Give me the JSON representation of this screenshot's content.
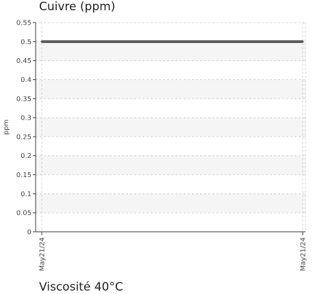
{
  "chart_data": {
    "type": "line",
    "title": "Cuivre (ppm)",
    "ylabel": "ppm",
    "xlabel": "",
    "ylim": [
      0,
      0.55
    ],
    "yticks": [
      "0",
      "0.05",
      "0.1",
      "0.15",
      "0.2",
      "0.25",
      "0.3",
      "0.35",
      "0.4",
      "0.45",
      "0.5",
      "0.55"
    ],
    "x": [
      "May21/24",
      "May21/24"
    ],
    "series": [
      {
        "values": [
          0.5,
          0.5
        ]
      }
    ],
    "grid": true,
    "colors": {
      "line": "#595959",
      "band": "#f5f5f5",
      "grid": "#cfcfcf",
      "axis": "#333333"
    }
  },
  "next_chart": {
    "title": "Viscosité 40°C"
  }
}
